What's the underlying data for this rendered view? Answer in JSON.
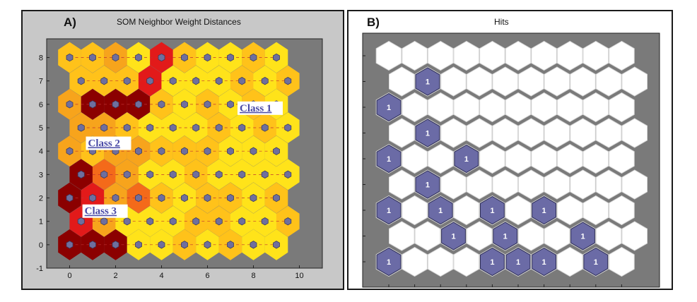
{
  "chart_data": [
    {
      "type": "heatmap",
      "panel_label": "A)",
      "title": "SOM Neighbor Weight Distances",
      "xlabel": "",
      "ylabel": "",
      "xlim": [
        -1,
        11
      ],
      "ylim": [
        -1,
        8.8
      ],
      "xticks": [
        "0",
        "2",
        "4",
        "6",
        "8",
        "10"
      ],
      "yticks": [
        "-1",
        "0",
        "1",
        "2",
        "3",
        "4",
        "5",
        "6",
        "7",
        "8"
      ],
      "grid_size": [
        10,
        9
      ],
      "annotations": [
        {
          "text": "Class 1",
          "x": 7.4,
          "y": 5.7
        },
        {
          "text": "Class 2",
          "x": 0.8,
          "y": 4.2
        },
        {
          "text": "Class 3",
          "x": 0.65,
          "y": 1.3
        }
      ],
      "colors": {
        "background": "#7a7a7a",
        "neuron": "#6f6f9e",
        "dark": "#8b0000",
        "red": "#e21a1a",
        "orange": "#f7a41c",
        "yellow": "#ffe31a",
        "black": "#000000"
      }
    },
    {
      "type": "heatmap",
      "panel_label": "B)",
      "title": "Hits",
      "grid_size": [
        10,
        9
      ],
      "hit_label": "1",
      "hits": [
        [
          0,
          0
        ],
        [
          4,
          0
        ],
        [
          5,
          0
        ],
        [
          6,
          0
        ],
        [
          8,
          0
        ],
        [
          2,
          1
        ],
        [
          4,
          1
        ],
        [
          7,
          1
        ],
        [
          0,
          2
        ],
        [
          2,
          2
        ],
        [
          4,
          2
        ],
        [
          6,
          2
        ],
        [
          1,
          3
        ],
        [
          0,
          4
        ],
        [
          3,
          4
        ],
        [
          1,
          5
        ],
        [
          0,
          6
        ],
        [
          1,
          7
        ]
      ],
      "colors": {
        "background": "#7a7a7a",
        "hex": "#ffffff",
        "hit": "#6b6ba6"
      }
    }
  ]
}
